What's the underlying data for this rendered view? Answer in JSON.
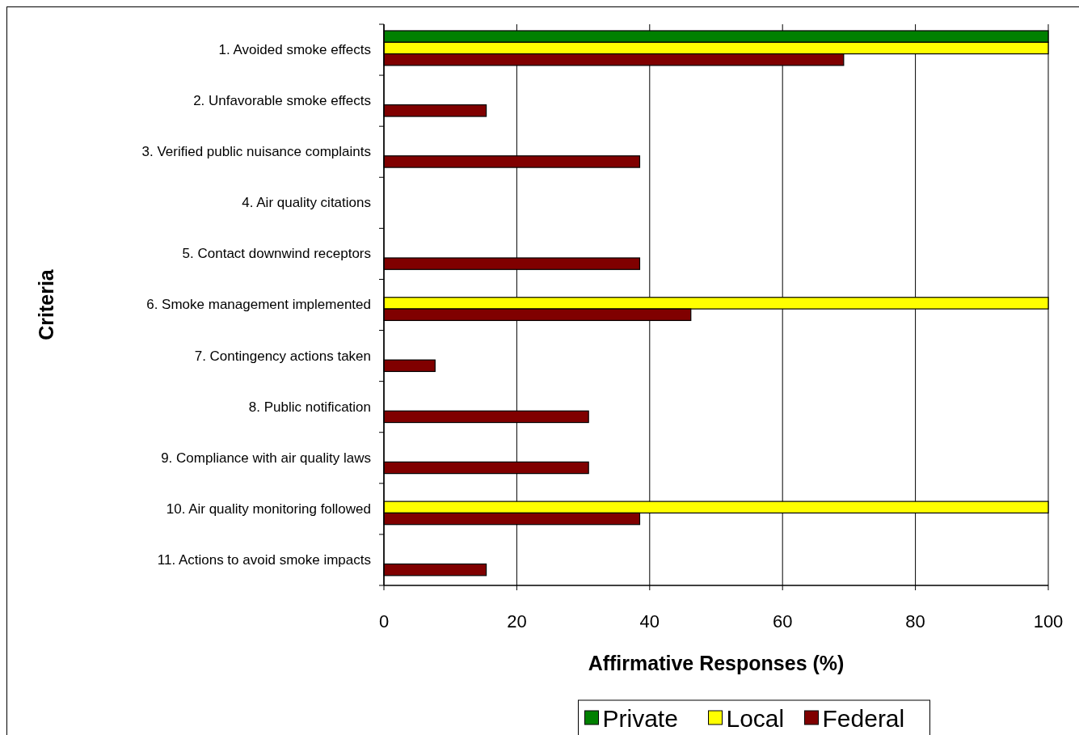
{
  "chart_data": {
    "type": "bar",
    "orientation": "horizontal",
    "xlabel": "Affirmative Responses (%)",
    "ylabel": "Criteria",
    "categories": [
      "1. Avoided smoke effects",
      "2. Unfavorable smoke effects",
      "3. Verified public nuisance complaints",
      "4. Air quality citations",
      "5. Contact downwind receptors",
      "6. Smoke management implemented",
      "7. Contingency actions taken",
      "8. Public notification",
      "9. Compliance with air quality laws",
      "10. Air quality monitoring followed",
      "11. Actions to avoid smoke impacts"
    ],
    "series": [
      {
        "name": "Private",
        "color": "#008000",
        "values": [
          100,
          null,
          null,
          null,
          null,
          null,
          null,
          null,
          null,
          null,
          null
        ]
      },
      {
        "name": "Local",
        "color": "#ffff00",
        "values": [
          100,
          null,
          null,
          null,
          null,
          100,
          null,
          null,
          null,
          100,
          null
        ]
      },
      {
        "name": "Federal",
        "color": "#800000",
        "values": [
          69.2,
          15.4,
          38.5,
          null,
          38.5,
          46.2,
          7.7,
          30.8,
          30.8,
          38.5,
          15.4
        ]
      }
    ],
    "xlim": [
      0,
      100
    ],
    "xticks": [
      0,
      20,
      40,
      60,
      80,
      100
    ],
    "grid": "x",
    "legend": "bottom"
  }
}
